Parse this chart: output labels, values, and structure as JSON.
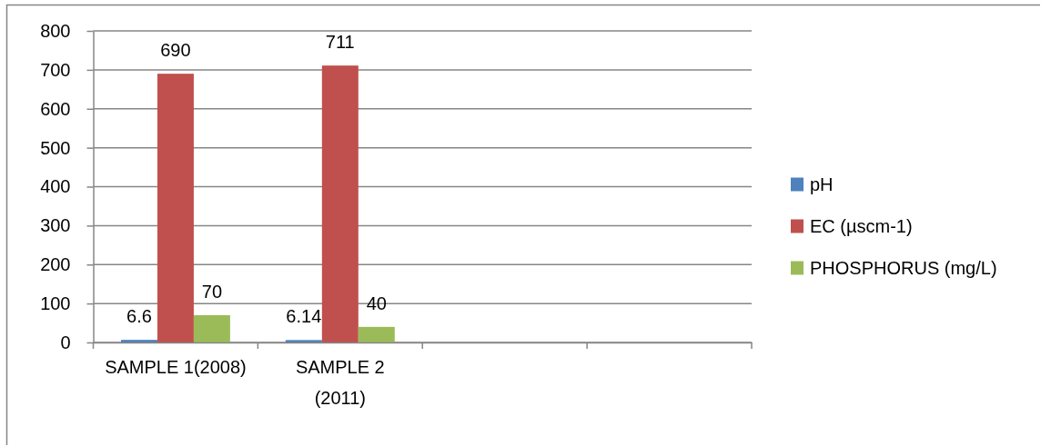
{
  "chart_data": {
    "type": "bar",
    "categories": [
      "SAMPLE 1(2008)",
      "SAMPLE 2 (2011)",
      null,
      null
    ],
    "series": [
      {
        "name": "pH",
        "color": "#4f81bd",
        "values": [
          6.6,
          6.14,
          null,
          null
        ]
      },
      {
        "name": "EC (µscm-1)",
        "color": "#c0504d",
        "values": [
          690,
          711,
          null,
          null
        ]
      },
      {
        "name": "PHOSPHORUS (mg/L)",
        "color": "#9bbb59",
        "values": [
          70,
          40,
          null,
          null
        ]
      }
    ],
    "ylim": [
      0,
      800
    ],
    "yticks": [
      0,
      100,
      200,
      300,
      400,
      500,
      600,
      700,
      800
    ],
    "grid": "y",
    "legend": "right",
    "data_labels": true
  }
}
